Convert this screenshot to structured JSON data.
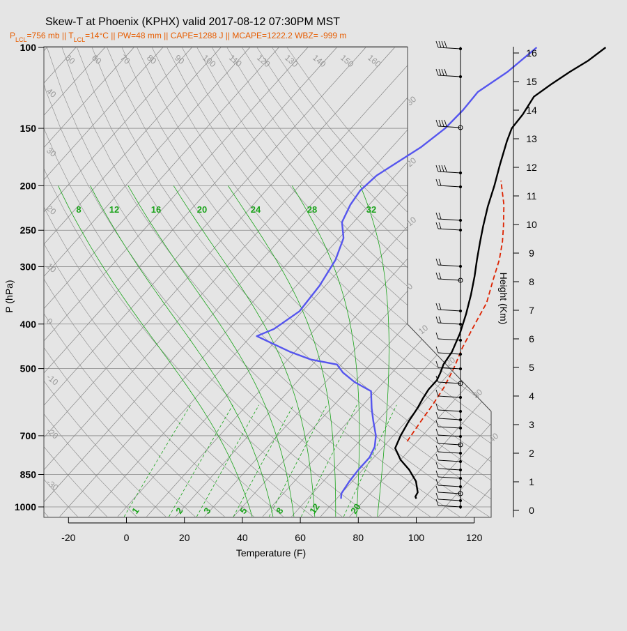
{
  "header": {
    "title": "Skew-T at Phoenix (KPHX) valid 2017-08-12 07:30PM MST",
    "subtitle_parts": [
      {
        "text": "P",
        "sub": "LCL"
      },
      {
        "text": "=756 mb || T",
        "sub": "LCL"
      },
      {
        "text": "=14°C || PW=48 mm || CAPE=1288 J || MCAPE=1222.2 WBZ= -999 m",
        "sub": ""
      }
    ]
  },
  "colors": {
    "background": "#e5e5e5",
    "temperature": "#000000",
    "dewpoint": "#5555ee",
    "parcel": "#dd2200",
    "mixing_ratio": "#1aa31a",
    "adiabat": "#444444",
    "isotherm_label": "#999999",
    "subtitle": "#e65c00"
  },
  "chart_data": {
    "type": "line",
    "title": "Skew-T at Phoenix (KPHX) valid 2017-08-12 07:30PM MST",
    "xlabel": "Temperature (F)",
    "ylabel": "P (hPa)",
    "y2label": "Height (Km)",
    "xlim": [
      -28,
      125
    ],
    "ylim": [
      1050,
      100
    ],
    "y_scale": "log",
    "x_ticks": [
      -20,
      0,
      20,
      40,
      60,
      80,
      100,
      120
    ],
    "y_ticks": [
      100,
      150,
      200,
      250,
      300,
      400,
      500,
      700,
      850,
      1000
    ],
    "height_ticks_km": [
      0,
      1,
      2,
      3,
      4,
      5,
      6,
      7,
      8,
      9,
      10,
      11,
      12,
      13,
      14,
      15,
      16
    ],
    "isotherm_labels_top": [
      "60",
      "60",
      "70",
      "80",
      "90",
      "100",
      "110",
      "120",
      "130",
      "140",
      "150",
      "160"
    ],
    "isotherm_labels_left": [
      "40",
      "30",
      "20",
      "10",
      "0",
      "-10",
      "-20",
      "-30"
    ],
    "isotherm_labels_right": [
      "30",
      "20",
      "10",
      "0",
      "10",
      "20",
      "30",
      "40"
    ],
    "mixing_ratio_labels_top": [
      "8",
      "12",
      "16",
      "20",
      "24",
      "28",
      "32"
    ],
    "mixing_ratio_labels_bottom": [
      "1",
      "2",
      "3",
      "5",
      "8",
      "12",
      "20"
    ],
    "series": [
      {
        "name": "Temperature",
        "points": [
          [
            97.5,
            960
          ],
          [
            96.5,
            950
          ],
          [
            96,
            930
          ],
          [
            92,
            880
          ],
          [
            86,
            830
          ],
          [
            80,
            790
          ],
          [
            74.5,
            745
          ],
          [
            72.5,
            700
          ],
          [
            70.8,
            650
          ],
          [
            69.8,
            610
          ],
          [
            68.6,
            580
          ],
          [
            67.8,
            555
          ],
          [
            67.8,
            530
          ],
          [
            66.8,
            512
          ],
          [
            65.2,
            490
          ],
          [
            64.2,
            460
          ],
          [
            61.3,
            420
          ],
          [
            57.3,
            380
          ],
          [
            53,
            345
          ],
          [
            48.6,
            315
          ],
          [
            44.3,
            290
          ],
          [
            39.8,
            265
          ],
          [
            36,
            245
          ],
          [
            31.5,
            222
          ],
          [
            27.3,
            200
          ],
          [
            22.7,
            180
          ],
          [
            17.8,
            160
          ],
          [
            15.5,
            150
          ],
          [
            15,
            140
          ],
          [
            13.3,
            128
          ],
          [
            15.5,
            120
          ],
          [
            18,
            113
          ],
          [
            20.8,
            107
          ],
          [
            22.8,
            100
          ]
        ]
      },
      {
        "name": "Dewpoint",
        "points": [
          [
            71.5,
            960
          ],
          [
            70,
            935
          ],
          [
            69,
            880
          ],
          [
            68.5,
            830
          ],
          [
            68.5,
            780
          ],
          [
            67,
            740
          ],
          [
            64,
            700
          ],
          [
            58.5,
            650
          ],
          [
            54,
            610
          ],
          [
            48.5,
            560
          ],
          [
            40,
            535
          ],
          [
            33,
            510
          ],
          [
            28.5,
            490
          ],
          [
            18,
            478
          ],
          [
            8.5,
            460
          ],
          [
            -8,
            425
          ],
          [
            -4.3,
            410
          ],
          [
            -1,
            375
          ],
          [
            -2,
            330
          ],
          [
            -4.5,
            290
          ],
          [
            -8.5,
            260
          ],
          [
            -14,
            240
          ],
          [
            -16.5,
            220
          ],
          [
            -17.5,
            205
          ],
          [
            -16.5,
            190
          ],
          [
            -10,
            165
          ],
          [
            -7.5,
            150
          ],
          [
            -7,
            137
          ],
          [
            -7.5,
            125
          ],
          [
            -3.5,
            113
          ],
          [
            -1,
            100
          ]
        ]
      },
      {
        "name": "Parcel",
        "points": [
          [
            76.5,
            720
          ],
          [
            75,
            650
          ],
          [
            74,
            600
          ],
          [
            72.5,
            550
          ],
          [
            70,
            500
          ],
          [
            66.5,
            450
          ],
          [
            63.5,
            400
          ],
          [
            61,
            360
          ],
          [
            56,
            320
          ],
          [
            52,
            290
          ],
          [
            47.5,
            265
          ],
          [
            43,
            245
          ],
          [
            36.5,
            220
          ],
          [
            28,
            195
          ]
        ]
      }
    ],
    "wind_profile": "barbs on right margin",
    "grid": true
  }
}
